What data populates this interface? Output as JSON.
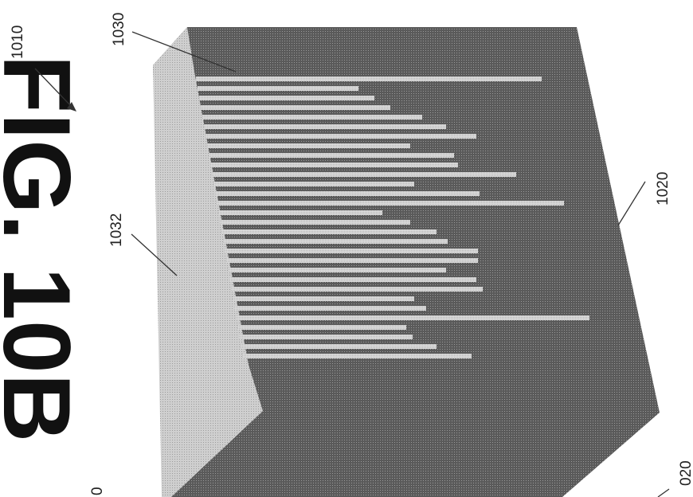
{
  "figure": {
    "title": "FIG. 10B",
    "colors": {
      "background": "#ffffff",
      "substrate": "#5c5c5c",
      "wall": "#c8c8c8",
      "fins": "#d4d4d4",
      "ink": "#222222"
    }
  },
  "labels": {
    "ref_1010": "1010",
    "ref_1020": "1020",
    "ref_1020_partial": "020",
    "ref_1030": "1030",
    "ref_1032": "1032",
    "ref_partial_left": "0"
  }
}
